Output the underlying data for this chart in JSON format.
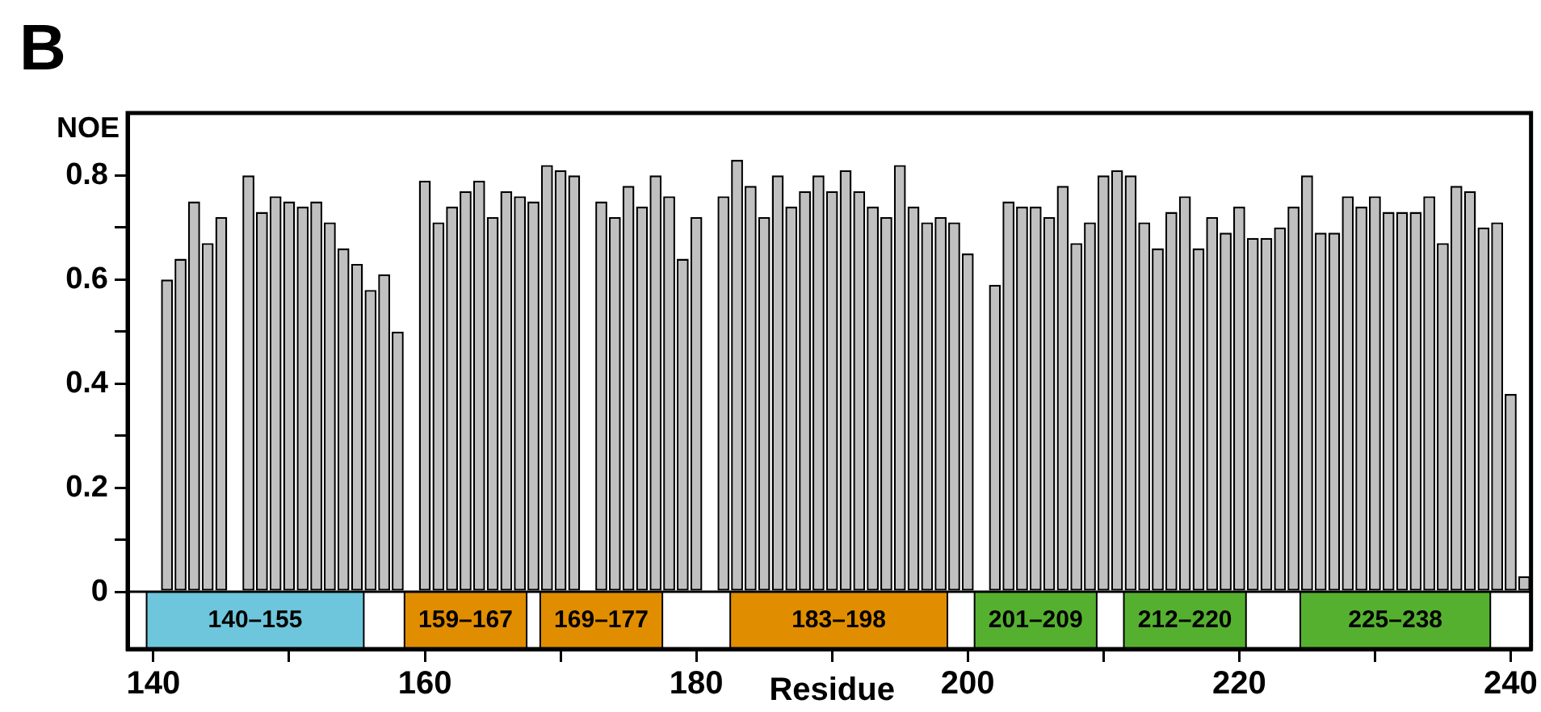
{
  "chart_data": {
    "type": "bar",
    "title": "B",
    "xlabel": "Residue",
    "ylabel": "NOE",
    "x": [
      141,
      142,
      143,
      144,
      145,
      146,
      147,
      148,
      149,
      150,
      151,
      152,
      153,
      154,
      155,
      156,
      157,
      158,
      159,
      160,
      161,
      162,
      163,
      164,
      165,
      166,
      167,
      168,
      169,
      170,
      171,
      172,
      173,
      174,
      175,
      176,
      177,
      178,
      179,
      180,
      181,
      182,
      183,
      184,
      185,
      186,
      187,
      188,
      189,
      190,
      191,
      192,
      193,
      194,
      195,
      196,
      197,
      198,
      199,
      200,
      201,
      202,
      203,
      204,
      205,
      206,
      207,
      208,
      209,
      210,
      211,
      212,
      213,
      214,
      215,
      216,
      217,
      218,
      219,
      220,
      221,
      222,
      223,
      224,
      225,
      226,
      227,
      228,
      229,
      230,
      231,
      232,
      233,
      234,
      235,
      236,
      237,
      238,
      239,
      240,
      241
    ],
    "series": [
      {
        "color": "#c0c0c0",
        "values": [
          0.6,
          0.64,
          0.75,
          0.67,
          0.72,
          null,
          0.8,
          0.73,
          0.76,
          0.75,
          0.74,
          0.75,
          0.71,
          0.66,
          0.63,
          0.58,
          0.61,
          0.5,
          null,
          0.79,
          0.71,
          0.74,
          0.77,
          0.79,
          0.72,
          0.77,
          0.76,
          0.75,
          0.82,
          0.81,
          0.8,
          null,
          0.75,
          0.72,
          0.78,
          0.74,
          0.8,
          0.76,
          0.64,
          0.72,
          null,
          0.76,
          0.83,
          0.78,
          0.72,
          0.8,
          0.74,
          0.77,
          0.8,
          0.77,
          0.81,
          0.77,
          0.74,
          0.72,
          0.82,
          0.74,
          0.71,
          0.72,
          0.71,
          0.65,
          null,
          0.59,
          0.75,
          0.74,
          0.74,
          0.72,
          0.78,
          0.67,
          0.71,
          0.8,
          0.81,
          0.8,
          0.71,
          0.66,
          0.73,
          0.76,
          0.66,
          0.72,
          0.69,
          0.74,
          0.68,
          0.68,
          0.7,
          0.74,
          0.8,
          0.69,
          0.69,
          0.76,
          0.74,
          0.76,
          0.73,
          0.73,
          0.73,
          0.76,
          0.67,
          0.78,
          0.77,
          0.7,
          0.71,
          0.38,
          0.03
        ]
      }
    ],
    "xlim": [
      138.1,
      241.5
    ],
    "xticks": [
      140,
      {
        "value": 150,
        "label": null
      },
      160,
      {
        "value": 170,
        "label": null
      },
      180,
      {
        "value": 190,
        "label": null
      },
      200,
      {
        "value": 210,
        "label": null
      },
      220,
      {
        "value": 230,
        "label": null
      },
      240
    ],
    "ylim": [
      -0.11,
      0.92
    ],
    "yticks": [
      0,
      {
        "value": 0.1,
        "label": null
      },
      0.2,
      {
        "value": 0.3,
        "label": null
      },
      0.4,
      {
        "value": 0.5,
        "label": null
      },
      0.6,
      {
        "value": 0.7,
        "label": null
      },
      0.8
    ],
    "grid": false,
    "ref_lines": [
      {
        "axis": "y",
        "value": 0,
        "color": "#000000"
      }
    ],
    "bands": [
      {
        "axis": "x",
        "from": 139.5,
        "to": 155.5,
        "label": "140–155",
        "color": "#6ec6dc"
      },
      {
        "axis": "x",
        "from": 158.5,
        "to": 167.5,
        "label": "159–167",
        "color": "#e08e00"
      },
      {
        "axis": "x",
        "from": 168.5,
        "to": 177.5,
        "label": "169–177",
        "color": "#e08e00"
      },
      {
        "axis": "x",
        "from": 182.5,
        "to": 198.5,
        "label": "183–198",
        "color": "#e08e00"
      },
      {
        "axis": "x",
        "from": 200.5,
        "to": 209.5,
        "label": "201–209",
        "color": "#56b030"
      },
      {
        "axis": "x",
        "from": 211.5,
        "to": 220.5,
        "label": "212–220",
        "color": "#56b030"
      },
      {
        "axis": "x",
        "from": 224.5,
        "to": 238.5,
        "label": "225–238",
        "color": "#56b030"
      }
    ]
  }
}
